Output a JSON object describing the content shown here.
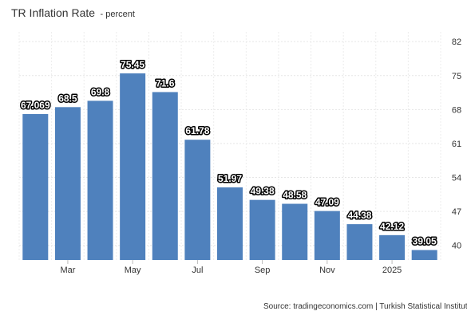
{
  "chart_data": {
    "type": "bar",
    "title": "TR Inflation Rate",
    "subtitle": "- percent",
    "xlabel": "",
    "ylabel": "",
    "x_tick_labels": [
      "Mar",
      "May",
      "Jul",
      "Sep",
      "Nov",
      "2025"
    ],
    "x_tick_categories": [
      "2024-03",
      "2024-05",
      "2024-07",
      "2024-09",
      "2024-11",
      "2025-01"
    ],
    "categories": [
      "2024-02",
      "2024-03",
      "2024-04",
      "2024-05",
      "2024-06",
      "2024-07",
      "2024-08",
      "2024-09",
      "2024-10",
      "2024-11",
      "2024-12",
      "2025-01",
      "2025-02"
    ],
    "values": [
      67.07,
      68.5,
      69.8,
      75.45,
      71.6,
      61.78,
      51.97,
      49.38,
      48.58,
      47.09,
      44.38,
      42.12,
      39.05
    ],
    "value_labels": [
      "67.069",
      "68.5",
      "69.8",
      "75.45",
      "71.6",
      "61.78",
      "51.97",
      "49.38",
      "48.58",
      "47.09",
      "44.38",
      "42.12",
      "39.05"
    ],
    "y_ticks": [
      40,
      47,
      54,
      61,
      68,
      75,
      82
    ],
    "ylim": [
      37,
      84
    ],
    "y_axis_side": "right",
    "grid": true,
    "bar_color": "#4f81bd"
  },
  "source_text": "Source: tradingeconomics.com | Turkish Statistical Institute"
}
